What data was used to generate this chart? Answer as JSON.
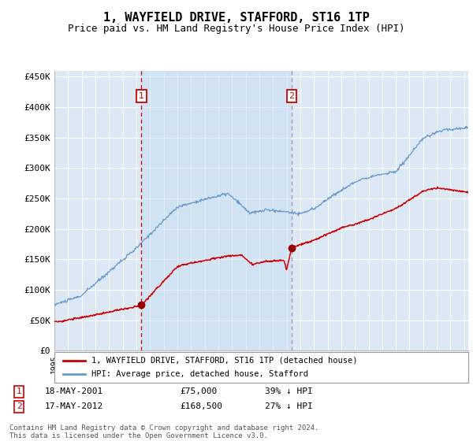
{
  "title": "1, WAYFIELD DRIVE, STAFFORD, ST16 1TP",
  "subtitle": "Price paid vs. HM Land Registry's House Price Index (HPI)",
  "title_fontsize": 11,
  "subtitle_fontsize": 9,
  "background_color": "#ffffff",
  "plot_bg_color": "#dce9f5",
  "shade_color": "#c8ddf0",
  "grid_color": "#ffffff",
  "ylabel_ticks": [
    "£0",
    "£50K",
    "£100K",
    "£150K",
    "£200K",
    "£250K",
    "£300K",
    "£350K",
    "£400K",
    "£450K"
  ],
  "ytick_values": [
    0,
    50000,
    100000,
    150000,
    200000,
    250000,
    300000,
    350000,
    400000,
    450000
  ],
  "ylim": [
    0,
    460000
  ],
  "xlim_start": 1995.0,
  "xlim_end": 2025.3,
  "sale1_date": 2001.37,
  "sale1_price": 75000,
  "sale2_date": 2012.37,
  "sale2_price": 168500,
  "legend_line1": "1, WAYFIELD DRIVE, STAFFORD, ST16 1TP (detached house)",
  "legend_line2": "HPI: Average price, detached house, Stafford",
  "footer": "Contains HM Land Registry data © Crown copyright and database right 2024.\nThis data is licensed under the Open Government Licence v3.0.",
  "hpi_color": "#6699cc",
  "price_color": "#cc0000",
  "sale_marker_color": "#990000",
  "vline1_color": "#cc0000",
  "vline2_color": "#9999aa",
  "box_color": "#cc0000"
}
